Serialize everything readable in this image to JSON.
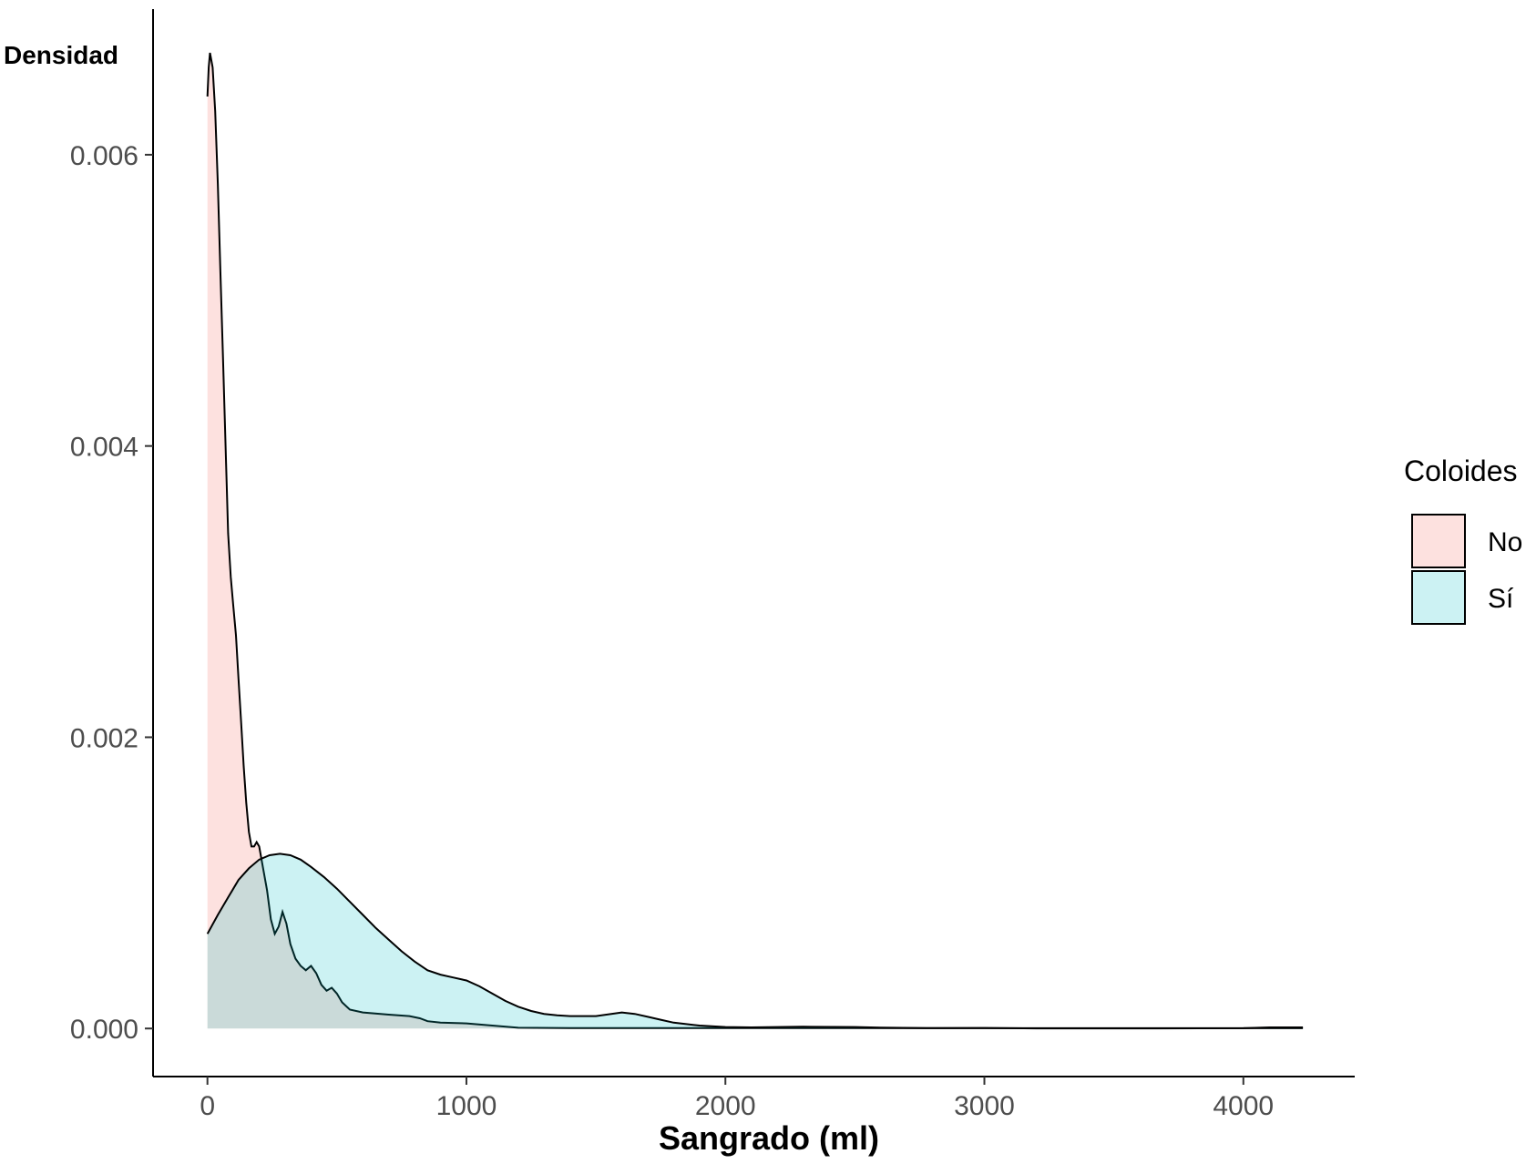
{
  "chart_data": {
    "type": "area",
    "subtype": "density",
    "title": "",
    "xlabel": "Sangrado (ml)",
    "ylabel": "Densidad",
    "xlim": [
      -210,
      4430
    ],
    "ylim": [
      -0.00033,
      0.007
    ],
    "x_ticks": [
      0,
      1000,
      2000,
      3000,
      4000
    ],
    "x_tick_labels": [
      "0",
      "1000",
      "2000",
      "3000",
      "4000"
    ],
    "y_ticks": [
      0.0,
      0.002,
      0.004,
      0.006
    ],
    "y_tick_labels": [
      "0.000",
      "0.002",
      "0.004",
      "0.006"
    ],
    "grid": false,
    "legend": {
      "title": "Coloides",
      "placement": "right"
    },
    "series": [
      {
        "name": "No",
        "fill": "#f8766d",
        "fill_opacity": 0.22,
        "points": [
          [
            0,
            0.0064
          ],
          [
            5,
            0.0066
          ],
          [
            10,
            0.0067
          ],
          [
            20,
            0.0066
          ],
          [
            30,
            0.0063
          ],
          [
            40,
            0.0058
          ],
          [
            50,
            0.0052
          ],
          [
            60,
            0.0046
          ],
          [
            70,
            0.004
          ],
          [
            80,
            0.0034
          ],
          [
            90,
            0.0031
          ],
          [
            100,
            0.0029
          ],
          [
            110,
            0.0027
          ],
          [
            120,
            0.0024
          ],
          [
            130,
            0.0021
          ],
          [
            140,
            0.0018
          ],
          [
            150,
            0.00155
          ],
          [
            160,
            0.00135
          ],
          [
            170,
            0.00125
          ],
          [
            180,
            0.00125
          ],
          [
            190,
            0.00128
          ],
          [
            200,
            0.00125
          ],
          [
            215,
            0.0011
          ],
          [
            230,
            0.00095
          ],
          [
            245,
            0.00075
          ],
          [
            260,
            0.00065
          ],
          [
            275,
            0.0007
          ],
          [
            290,
            0.0008
          ],
          [
            305,
            0.00072
          ],
          [
            320,
            0.00058
          ],
          [
            340,
            0.00048
          ],
          [
            360,
            0.00043
          ],
          [
            380,
            0.0004
          ],
          [
            400,
            0.00043
          ],
          [
            420,
            0.00038
          ],
          [
            440,
            0.0003
          ],
          [
            460,
            0.00026
          ],
          [
            480,
            0.00028
          ],
          [
            500,
            0.00024
          ],
          [
            520,
            0.00018
          ],
          [
            550,
            0.00013
          ],
          [
            600,
            0.00011
          ],
          [
            700,
            9.5e-05
          ],
          [
            780,
            8.5e-05
          ],
          [
            820,
            7e-05
          ],
          [
            850,
            5e-05
          ],
          [
            900,
            4e-05
          ],
          [
            1000,
            3.5e-05
          ],
          [
            1100,
            2e-05
          ],
          [
            1200,
            5e-06
          ],
          [
            1400,
            3e-06
          ],
          [
            1600,
            3e-06
          ],
          [
            1800,
            3e-06
          ],
          [
            2000,
            3e-06
          ],
          [
            2200,
            3e-06
          ],
          [
            2500,
            3e-06
          ],
          [
            3000,
            2e-06
          ],
          [
            3500,
            2e-06
          ],
          [
            4000,
            2e-06
          ],
          [
            4230,
            2e-06
          ]
        ]
      },
      {
        "name": "Sí",
        "fill": "#00bfc4",
        "fill_opacity": 0.2,
        "points": [
          [
            0,
            0.00065
          ],
          [
            40,
            0.00078
          ],
          [
            80,
            0.0009
          ],
          [
            120,
            0.00102
          ],
          [
            160,
            0.0011
          ],
          [
            200,
            0.00116
          ],
          [
            240,
            0.00119
          ],
          [
            280,
            0.0012
          ],
          [
            320,
            0.00119
          ],
          [
            360,
            0.00116
          ],
          [
            400,
            0.00111
          ],
          [
            450,
            0.00104
          ],
          [
            500,
            0.00096
          ],
          [
            550,
            0.00087
          ],
          [
            600,
            0.00078
          ],
          [
            650,
            0.00069
          ],
          [
            700,
            0.00061
          ],
          [
            750,
            0.00053
          ],
          [
            800,
            0.00046
          ],
          [
            850,
            0.0004
          ],
          [
            900,
            0.00037
          ],
          [
            950,
            0.00035
          ],
          [
            1000,
            0.00033
          ],
          [
            1050,
            0.00029
          ],
          [
            1100,
            0.00024
          ],
          [
            1150,
            0.00019
          ],
          [
            1200,
            0.00015
          ],
          [
            1250,
            0.00012
          ],
          [
            1300,
            0.0001
          ],
          [
            1350,
            9e-05
          ],
          [
            1400,
            8.5e-05
          ],
          [
            1500,
            8.5e-05
          ],
          [
            1600,
            0.00011
          ],
          [
            1650,
            0.0001
          ],
          [
            1700,
            8e-05
          ],
          [
            1750,
            6e-05
          ],
          [
            1800,
            4e-05
          ],
          [
            1900,
            2e-05
          ],
          [
            2000,
            1e-05
          ],
          [
            2100,
            8e-06
          ],
          [
            2300,
            1.2e-05
          ],
          [
            2500,
            1e-05
          ],
          [
            2600,
            6e-06
          ],
          [
            2800,
            3e-06
          ],
          [
            3000,
            4e-06
          ],
          [
            3200,
            1e-06
          ],
          [
            3600,
            1e-06
          ],
          [
            4000,
            2e-06
          ],
          [
            4100,
            8e-06
          ],
          [
            4230,
            8e-06
          ]
        ]
      }
    ]
  }
}
